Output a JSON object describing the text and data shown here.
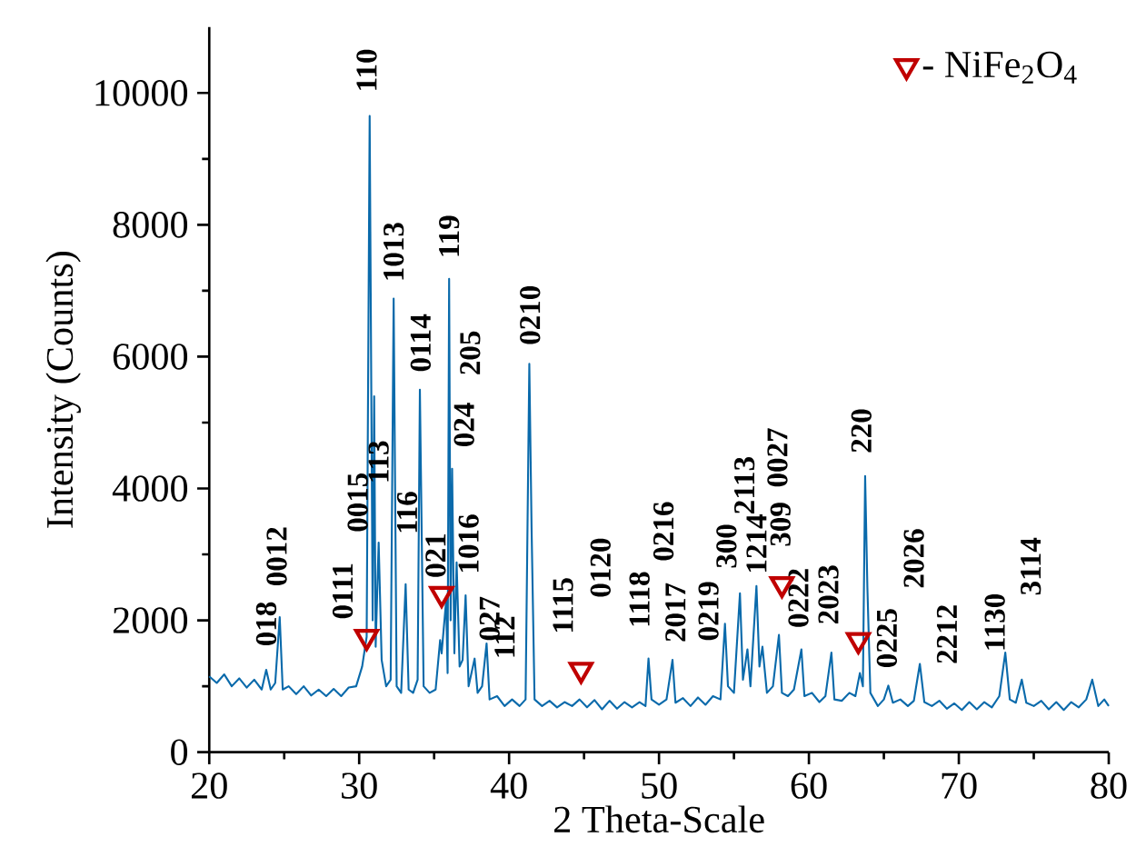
{
  "chart_data": {
    "type": "line",
    "xlabel": "2 Theta-Scale",
    "ylabel": "Intensity (Counts)",
    "xlim": [
      20,
      80
    ],
    "ylim": [
      0,
      11000
    ],
    "xticks": [
      20,
      30,
      40,
      50,
      60,
      70,
      80
    ],
    "yticks": [
      0,
      2000,
      4000,
      6000,
      8000,
      10000
    ],
    "legend": "top right",
    "series": [
      {
        "color": "#0a6aab",
        "marker": "none",
        "x": [
          20,
          20.5,
          21,
          21.5,
          22,
          22.5,
          23,
          23.5,
          23.8,
          24.1,
          24.4,
          24.7,
          24.9,
          25.3,
          25.8,
          26.3,
          26.8,
          27.3,
          27.8,
          28.3,
          28.8,
          29.3,
          29.8,
          30.2,
          30.5,
          30.7,
          30.9,
          31.0,
          31.1,
          31.3,
          31.5,
          31.8,
          32.1,
          32.3,
          32.5,
          32.8,
          33.1,
          33.3,
          33.6,
          33.9,
          34.05,
          34.3,
          34.7,
          35.1,
          35.4,
          35.5,
          35.8,
          35.9,
          36.0,
          36.1,
          36.2,
          36.35,
          36.5,
          36.7,
          36.9,
          37.1,
          37.3,
          37.7,
          37.9,
          38.2,
          38.5,
          38.7,
          39.2,
          39.7,
          40.2,
          40.7,
          41.1,
          41.35,
          41.5,
          41.7,
          42.2,
          42.7,
          43.2,
          43.7,
          44.2,
          44.7,
          45.2,
          45.7,
          46.2,
          46.7,
          47.2,
          47.7,
          48.2,
          48.7,
          49.1,
          49.3,
          49.5,
          50.0,
          50.5,
          50.9,
          51.1,
          51.6,
          52.1,
          52.6,
          53.1,
          53.6,
          54.1,
          54.4,
          54.6,
          55.0,
          55.4,
          55.6,
          55.9,
          56.1,
          56.5,
          56.7,
          56.9,
          57.2,
          57.6,
          58.0,
          58.2,
          58.6,
          59.0,
          59.5,
          59.7,
          60.2,
          60.7,
          61.1,
          61.5,
          61.7,
          62.2,
          62.7,
          63.1,
          63.4,
          63.6,
          63.75,
          63.9,
          64.1,
          64.6,
          65.0,
          65.3,
          65.6,
          66.1,
          66.6,
          67.0,
          67.4,
          67.7,
          68.2,
          68.7,
          69.2,
          69.7,
          70.2,
          70.7,
          71.2,
          71.7,
          72.2,
          72.7,
          73.1,
          73.4,
          73.8,
          74.2,
          74.5,
          75.0,
          75.5,
          76.0,
          76.5,
          77.0,
          77.5,
          78.0,
          78.5,
          78.9,
          79.3,
          79.7,
          80
        ],
        "values": [
          1150,
          1050,
          1180,
          1000,
          1120,
          980,
          1100,
          950,
          1250,
          950,
          1050,
          2050,
          950,
          1000,
          880,
          1000,
          860,
          950,
          850,
          960,
          850,
          980,
          1000,
          1300,
          1750,
          9650,
          2000,
          5400,
          1600,
          3180,
          1400,
          1000,
          1100,
          6880,
          1000,
          900,
          2550,
          950,
          900,
          1100,
          5500,
          1000,
          900,
          950,
          1700,
          1500,
          2300,
          1200,
          7180,
          2000,
          4300,
          1500,
          2880,
          1300,
          1400,
          2380,
          1000,
          1420,
          900,
          1000,
          1650,
          800,
          850,
          700,
          800,
          700,
          800,
          5890,
          3400,
          800,
          700,
          780,
          680,
          760,
          700,
          800,
          680,
          790,
          650,
          780,
          660,
          760,
          680,
          760,
          700,
          1420,
          800,
          720,
          800,
          1400,
          750,
          820,
          700,
          830,
          720,
          850,
          800,
          1950,
          1000,
          900,
          2410,
          1100,
          1560,
          1000,
          2520,
          1300,
          1600,
          900,
          1000,
          1780,
          900,
          850,
          950,
          1560,
          850,
          900,
          760,
          850,
          1510,
          800,
          780,
          900,
          850,
          1200,
          1000,
          4190,
          2500,
          900,
          700,
          800,
          1010,
          750,
          800,
          700,
          780,
          1340,
          760,
          700,
          780,
          660,
          740,
          640,
          760,
          650,
          760,
          680,
          850,
          1510,
          800,
          750,
          1100,
          750,
          700,
          780,
          650,
          760,
          640,
          760,
          680,
          800,
          1100,
          700,
          800,
          700
        ]
      },
      {
        "type": "scatter",
        "name": "- NiFe$_{2}$O$_{4}$",
        "color": "#c00000",
        "marker": "triangle",
        "x": [
          30.5,
          35.5,
          44.8,
          58.2,
          63.3
        ],
        "values": [
          1750,
          2400,
          1250,
          2550,
          1700
        ]
      }
    ],
    "annotations": [
      {
        "text": "018",
        "x": 23.8,
        "y": 1250
      },
      {
        "text": "0012",
        "x": 24.7,
        "y": 2050
      },
      {
        "text": "0111",
        "x": 30.5,
        "y": 1750
      },
      {
        "text": "0015",
        "x": 30.9,
        "y": 2000
      },
      {
        "text": "110",
        "x": 30.7,
        "y": 9650
      },
      {
        "text": "113",
        "x": 31.3,
        "y": 3180
      },
      {
        "text": "1013",
        "x": 32.3,
        "y": 6880
      },
      {
        "text": "116",
        "x": 33.1,
        "y": 2550
      },
      {
        "text": "0114",
        "x": 34.05,
        "y": 5500
      },
      {
        "text": "021",
        "x": 35.8,
        "y": 2300
      },
      {
        "text": "119",
        "x": 36.0,
        "y": 7180
      },
      "205",
      {
        "text": "024",
        "x": 36.2,
        "y": 4300
      },
      {
        "text": "1016",
        "x": 36.5,
        "y": 2880
      },
      {
        "text": "027",
        "x": 37.7,
        "y": 1420
      },
      {
        "text": "112",
        "x": 38.5,
        "y": 1650
      },
      {
        "text": "0210",
        "x": 41.35,
        "y": 5890
      },
      {
        "text": "1115",
        "x": 44.7,
        "y": 800
      },
      "0120",
      {
        "text": "1118",
        "x": 49.3,
        "y": 1420
      },
      "0216",
      {
        "text": "2017",
        "x": 50.9,
        "y": 1400
      },
      {
        "text": "0219",
        "x": 54.4,
        "y": 1950
      },
      {
        "text": "300",
        "x": 55.4,
        "y": 2410
      },
      {
        "text": "2113",
        "x": 56.5,
        "y": 2520
      },
      {
        "text": "1214",
        "x": 56.9,
        "y": 1600
      },
      "0027",
      {
        "text": "309",
        "x": 58.0,
        "y": 1780
      },
      {
        "text": "0222",
        "x": 59.5,
        "y": 1560
      },
      {
        "text": "2023",
        "x": 61.5,
        "y": 1510
      },
      {
        "text": "220",
        "x": 63.75,
        "y": 4190
      },
      {
        "text": "0225",
        "x": 65.3,
        "y": 1010
      },
      {
        "text": "2026",
        "x": 67.4,
        "y": 1340
      },
      {
        "text": "2212",
        "x": 69.2,
        "y": 660
      },
      {
        "text": "1130",
        "x": 73.1,
        "y": 1510
      },
      {
        "text": "3114",
        "x": 74.2,
        "y": 1100
      }
    ]
  }
}
